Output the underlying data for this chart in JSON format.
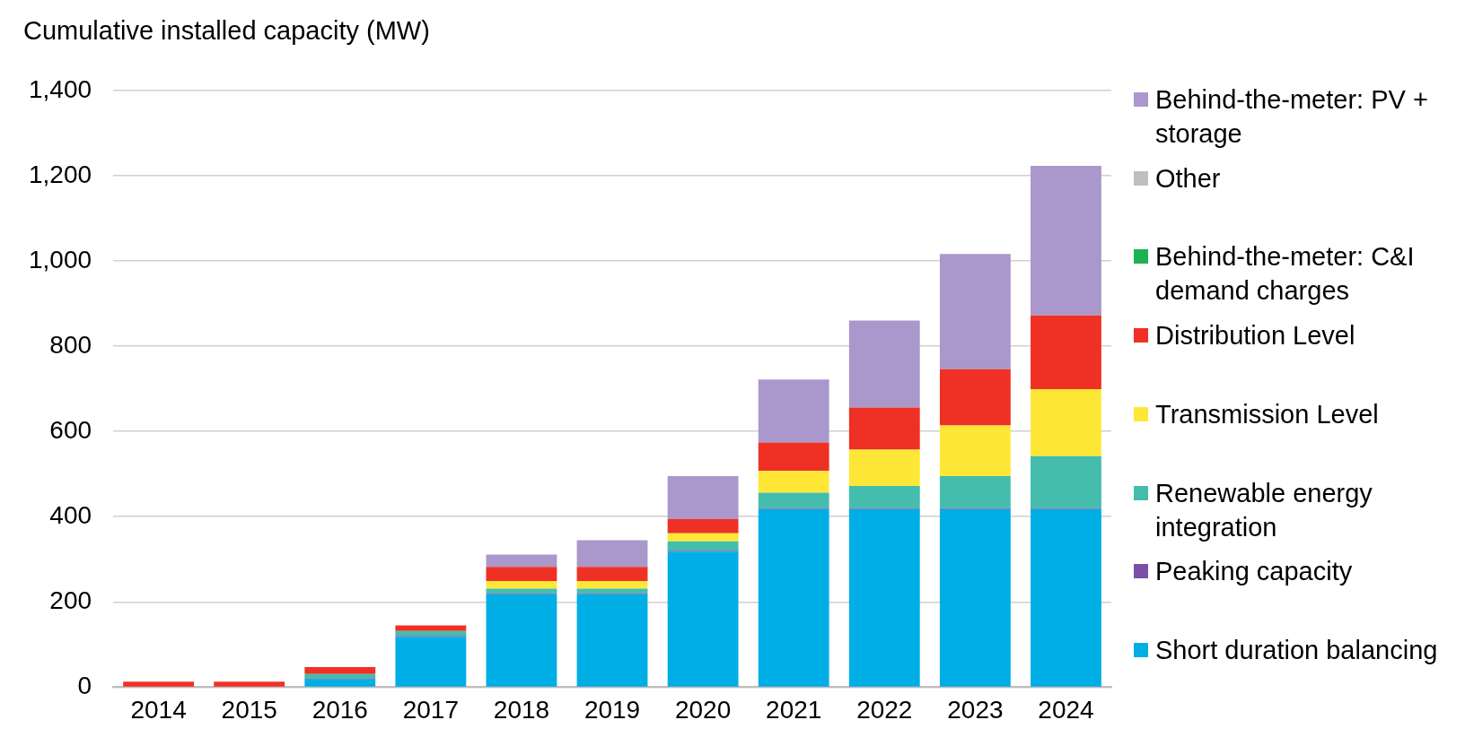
{
  "chart_data": {
    "type": "bar",
    "stacked": true,
    "ylabel": "Cumulative installed capacity (MW)",
    "categories": [
      "2014",
      "2015",
      "2016",
      "2017",
      "2018",
      "2019",
      "2020",
      "2021",
      "2022",
      "2023",
      "2024"
    ],
    "series": [
      {
        "name": "Short duration balancing",
        "color": "#00aee6",
        "values": [
          0,
          0,
          18,
          118,
          218,
          218,
          318,
          418,
          418,
          418,
          418
        ]
      },
      {
        "name": "Peaking capacity",
        "color": "#7b4fa6",
        "values": [
          0,
          0,
          2,
          2,
          2,
          2,
          2,
          2,
          2,
          2,
          2
        ]
      },
      {
        "name": "Renewable energy integration",
        "color": "#44bdad",
        "values": [
          null,
          null,
          11,
          12,
          11,
          11,
          22,
          36,
          52,
          75,
          122
        ]
      },
      {
        "name": "Transmission Level",
        "color": "#ffe737",
        "values": [
          0,
          0,
          0,
          0,
          18,
          18,
          19,
          51,
          85,
          119,
          157
        ]
      },
      {
        "name": "Distribution Level",
        "color": "#ee3124",
        "values": [
          13,
          13,
          16,
          13,
          33,
          33,
          33,
          67,
          99,
          132,
          173
        ]
      },
      {
        "name": "Behind-the-meter: C&I demand charges",
        "color": "#1db254",
        "values": [
          0,
          0,
          0,
          0,
          0,
          0,
          0,
          0,
          0,
          0,
          0
        ]
      },
      {
        "name": "Other",
        "color": "#bfbfbf",
        "values": [
          0,
          0,
          0,
          0,
          0,
          0,
          0,
          0,
          0,
          0,
          0
        ]
      },
      {
        "name": "Behind-the-meter: PV + storage",
        "color": "#aa97cb",
        "values": [
          0,
          0,
          0,
          0,
          29,
          63,
          101,
          148,
          204,
          270,
          351
        ]
      }
    ],
    "ylim": [
      0,
      1400
    ],
    "yticks": [
      0,
      200,
      400,
      600,
      800,
      {
        "value": 1000,
        "label": "1,000"
      },
      {
        "value": 1200,
        "label": "1,200"
      },
      {
        "value": 1400,
        "label": "1,400"
      }
    ],
    "grid": "y",
    "legend": "right"
  }
}
